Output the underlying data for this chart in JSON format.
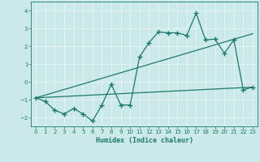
{
  "xlabel": "Humidex (Indice chaleur)",
  "xlim": [
    -0.5,
    23.5
  ],
  "ylim": [
    -2.5,
    4.5
  ],
  "yticks": [
    -2,
    -1,
    0,
    1,
    2,
    3,
    4
  ],
  "xticks": [
    0,
    1,
    2,
    3,
    4,
    5,
    6,
    7,
    8,
    9,
    10,
    11,
    12,
    13,
    14,
    15,
    16,
    17,
    18,
    19,
    20,
    21,
    22,
    23
  ],
  "background_color": "#cce9e9",
  "grid_color": "#e8f5f5",
  "line_color": "#1a7a6e",
  "line1_x": [
    0,
    1,
    2,
    3,
    4,
    5,
    6,
    7,
    8,
    9,
    10,
    11,
    12,
    13,
    14,
    15,
    16,
    17,
    18,
    19,
    20,
    21,
    22,
    23
  ],
  "line1_y": [
    -0.9,
    -1.1,
    -1.6,
    -1.8,
    -1.5,
    -1.8,
    -2.2,
    -1.3,
    -0.15,
    -1.3,
    -1.3,
    1.4,
    2.2,
    2.8,
    2.75,
    2.75,
    2.6,
    3.85,
    2.35,
    2.4,
    1.6,
    2.35,
    -0.45,
    -0.3
  ],
  "line2_x": [
    0,
    23
  ],
  "line2_y": [
    -0.9,
    -0.3
  ],
  "line3_x": [
    0,
    23
  ],
  "line3_y": [
    -0.9,
    2.7
  ],
  "marker_style": "+",
  "marker_size": 4,
  "line_width": 0.9
}
